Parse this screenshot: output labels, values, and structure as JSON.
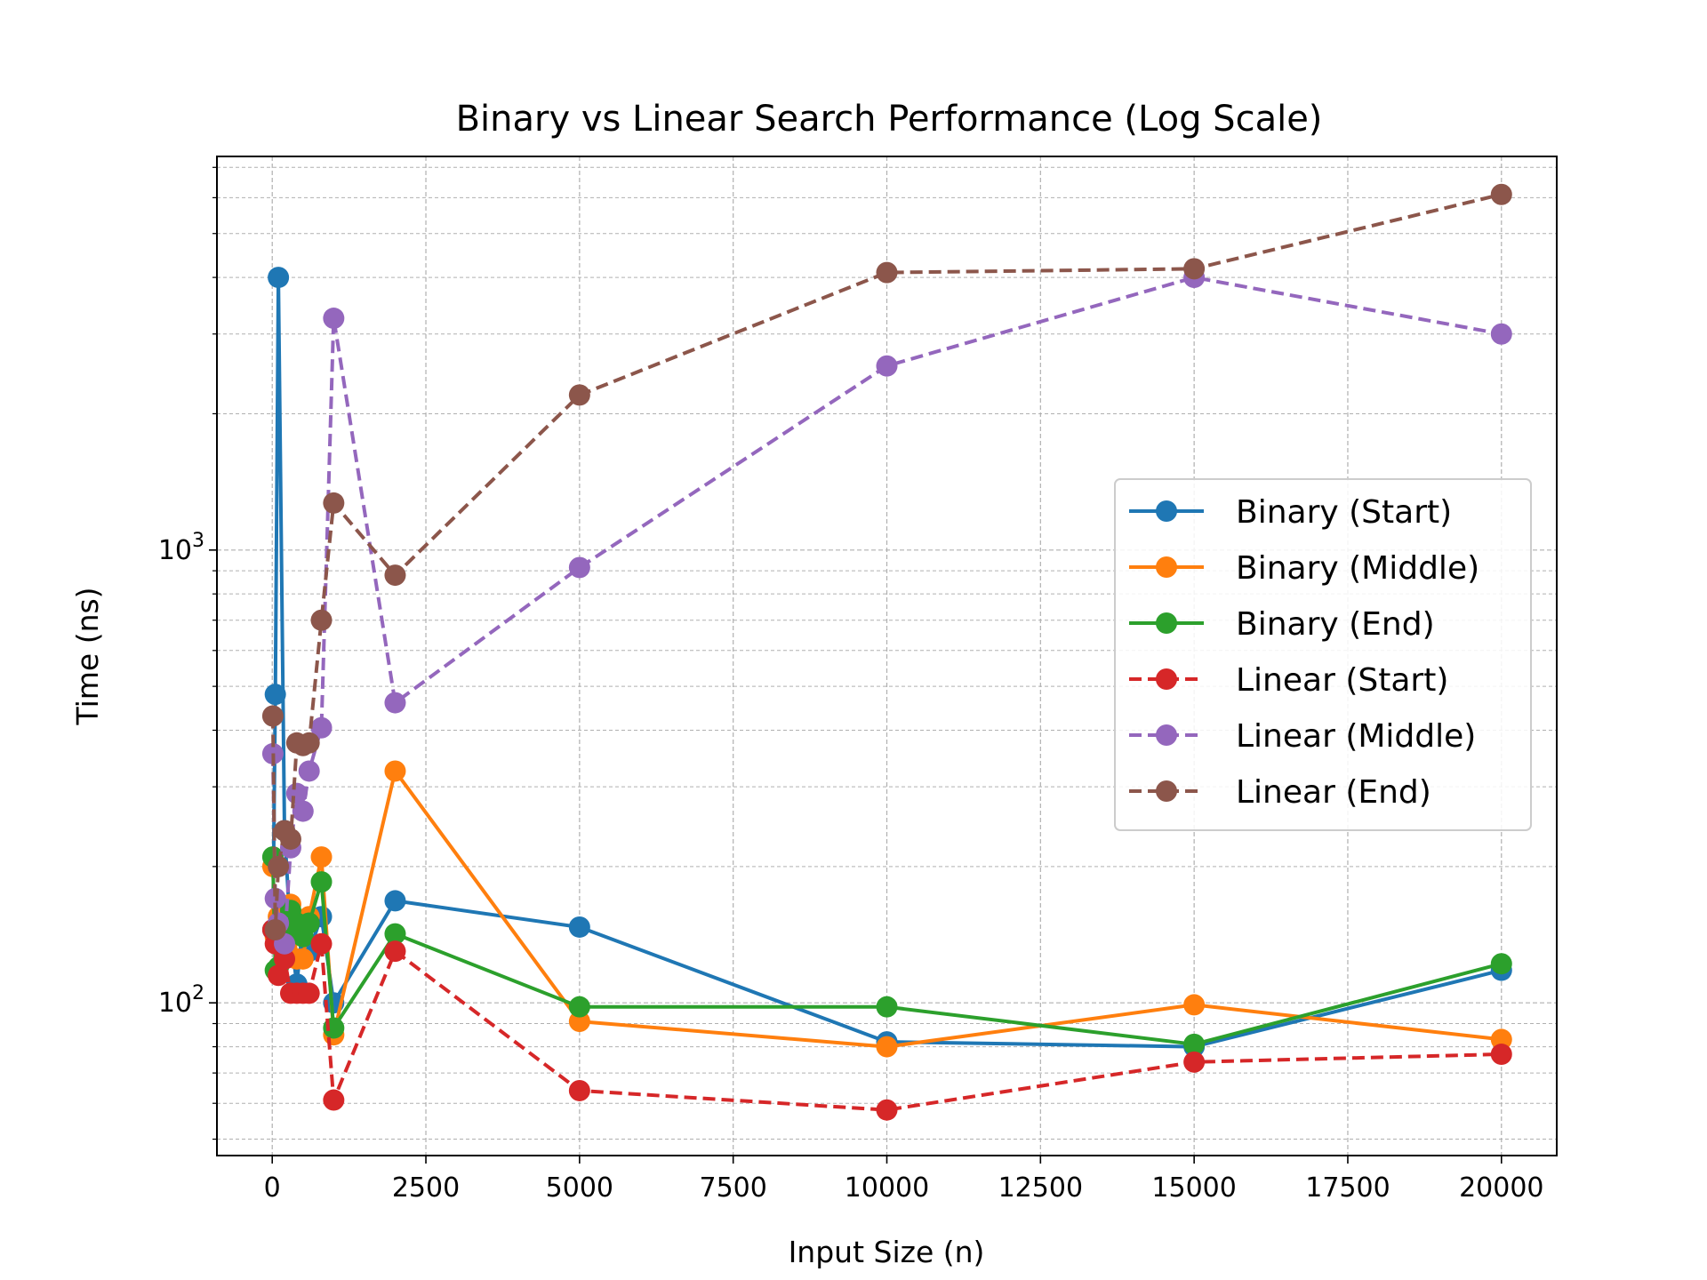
{
  "chart_data": {
    "type": "line",
    "title": "Binary vs Linear Search Performance (Log Scale)",
    "xlabel": "Input Size (n)",
    "ylabel": "Time (ns)",
    "xlim": [
      -900,
      20900
    ],
    "ylim": [
      46,
      7400
    ],
    "yscale": "log",
    "grid": true,
    "legend_position": "center-right",
    "x_ticks": [
      0,
      2500,
      5000,
      7500,
      10000,
      12500,
      15000,
      17500,
      20000
    ],
    "x_tick_labels": [
      "0",
      "2500",
      "5000",
      "7500",
      "10000",
      "12500",
      "15000",
      "17500",
      "20000"
    ],
    "y_major_ticks": [
      100,
      1000
    ],
    "y_major_tick_labels": [
      "10",
      "10"
    ],
    "y_major_tick_exponents": [
      "2",
      "3"
    ],
    "x": [
      10,
      50,
      100,
      200,
      300,
      400,
      500,
      600,
      800,
      1000,
      2000,
      5000,
      10000,
      15000,
      20000
    ],
    "series": [
      {
        "name": "Binary (Start)",
        "color": "#1f77b4",
        "dash": false,
        "values": [
          145,
          480,
          4000,
          240,
          140,
          110,
          150,
          130,
          155,
          100,
          168,
          147,
          82,
          80,
          118
        ]
      },
      {
        "name": "Binary (Middle)",
        "color": "#ff7f0e",
        "dash": false,
        "values": [
          200,
          140,
          155,
          150,
          165,
          125,
          125,
          155,
          210,
          85,
          325,
          91,
          80,
          99,
          83
        ]
      },
      {
        "name": "Binary (End)",
        "color": "#2ca02c",
        "dash": false,
        "values": [
          210,
          118,
          120,
          145,
          160,
          150,
          140,
          150,
          185,
          88,
          142,
          98,
          98,
          81,
          122
        ]
      },
      {
        "name": "Linear (Start)",
        "color": "#d62728",
        "dash": true,
        "values": [
          145,
          135,
          115,
          125,
          105,
          105,
          105,
          105,
          135,
          61,
          130,
          64,
          58,
          74,
          77
        ]
      },
      {
        "name": "Linear (Middle)",
        "color": "#9467bd",
        "dash": true,
        "values": [
          355,
          170,
          150,
          135,
          220,
          290,
          265,
          325,
          405,
          3250,
          460,
          915,
          2550,
          4000,
          3000
        ]
      },
      {
        "name": "Linear (End)",
        "color": "#8c564b",
        "dash": true,
        "values": [
          430,
          145,
          200,
          240,
          230,
          375,
          370,
          375,
          700,
          1270,
          880,
          2200,
          4100,
          4180,
          6100
        ]
      }
    ]
  }
}
